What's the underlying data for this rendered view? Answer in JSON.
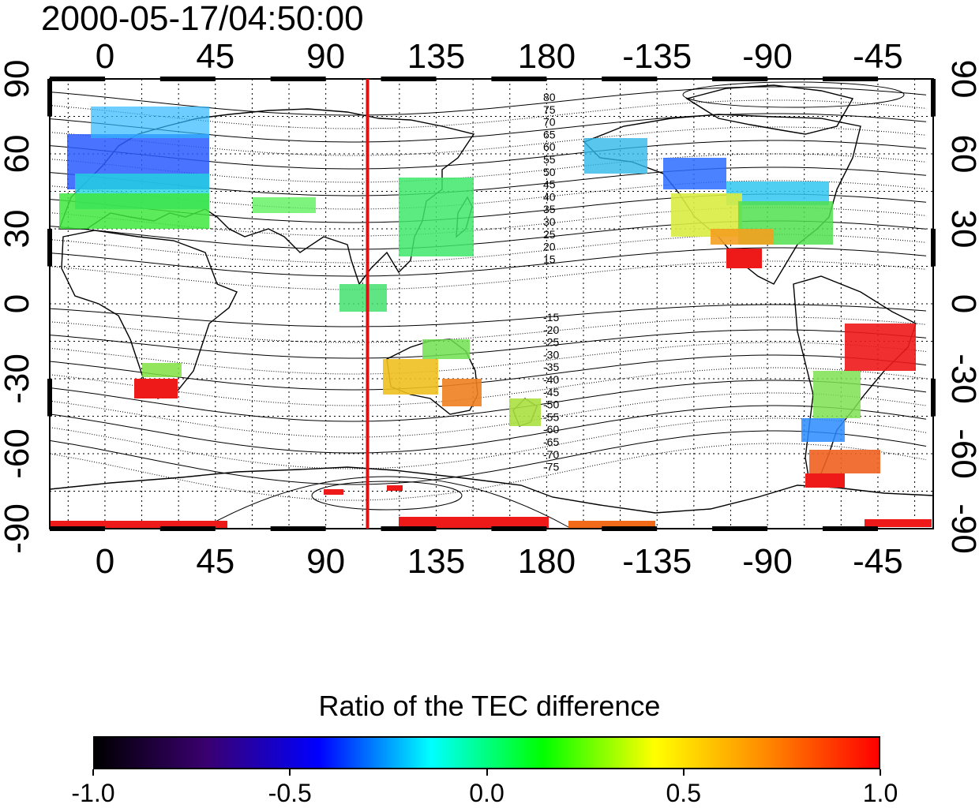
{
  "title": "2000-05-17/04:50:00",
  "map": {
    "lon_ticks_top": [
      "0",
      "45",
      "90",
      "135",
      "180",
      "-135",
      "-90",
      "-45"
    ],
    "lon_ticks_bottom": [
      "0",
      "45",
      "90",
      "135",
      "180",
      "-135",
      "-90",
      "-45"
    ],
    "lat_ticks_left": [
      "90",
      "60",
      "30",
      "0",
      "-30",
      "-60",
      "-90"
    ],
    "lat_ticks_right": [
      "90",
      "60",
      "30",
      "0",
      "-30",
      "-60",
      "-90"
    ],
    "marker_line": {
      "longitude": 107,
      "color": "#dd1111"
    },
    "north_contour_labels": [
      "80",
      "75",
      "70",
      "65",
      "60",
      "55",
      "50",
      "45",
      "40",
      "35",
      "30",
      "25",
      "20",
      "15"
    ],
    "south_contour_labels": [
      "-15",
      "-20",
      "-25",
      "-30",
      "-35",
      "-40",
      "-45",
      "-50",
      "-55",
      "-60",
      "-65",
      "-70",
      "-75"
    ]
  },
  "colorbar": {
    "title": "Ratio of the TEC difference",
    "range": [
      -1.0,
      1.0
    ],
    "tick_labels": [
      "-1.0",
      "-0.5",
      "0.0",
      "0.5",
      "1.0"
    ],
    "colors": [
      "#000000",
      "#3a0070",
      "#0000ff",
      "#00ffff",
      "#00ff00",
      "#ffff00",
      "#ff8800",
      "#ff0000"
    ]
  }
}
